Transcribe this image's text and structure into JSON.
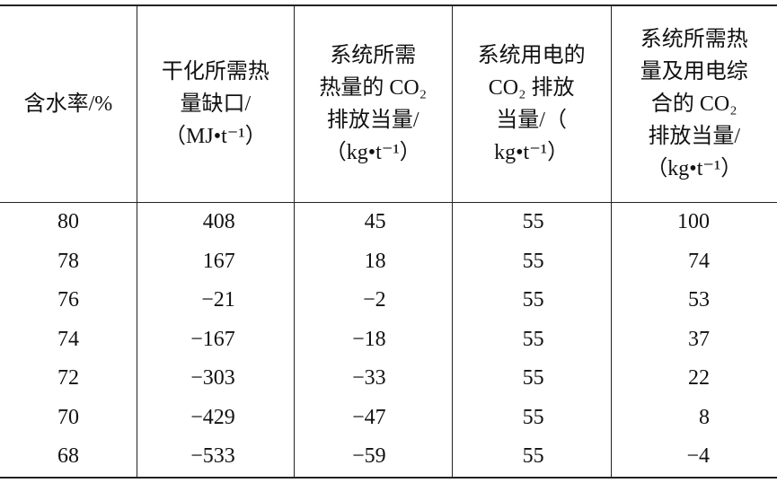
{
  "table": {
    "headers": [
      [
        "含水率/%"
      ],
      [
        "干化所需热",
        "量缺口/",
        "（MJ•t⁻¹）"
      ],
      [
        "系统所需",
        "热量的 CO₂",
        "排放当量/",
        "（kg•t⁻¹）"
      ],
      [
        "系统用电的",
        "CO₂ 排放",
        "当量/（",
        "kg•t⁻¹）"
      ],
      [
        "系统所需热",
        "量及用电综",
        "合的 CO₂",
        "排放当量/",
        "（kg•t⁻¹）"
      ]
    ],
    "rows": [
      [
        "80",
        "408",
        "45",
        "55",
        "100"
      ],
      [
        "78",
        "167",
        "18",
        "55",
        "74"
      ],
      [
        "76",
        "−21",
        "−2",
        "55",
        "53"
      ],
      [
        "74",
        "−167",
        "−18",
        "55",
        "37"
      ],
      [
        "72",
        "−303",
        "−33",
        "55",
        "22"
      ],
      [
        "70",
        "−429",
        "−47",
        "55",
        "8"
      ],
      [
        "68",
        "−533",
        "−59",
        "55",
        "−4"
      ]
    ]
  }
}
